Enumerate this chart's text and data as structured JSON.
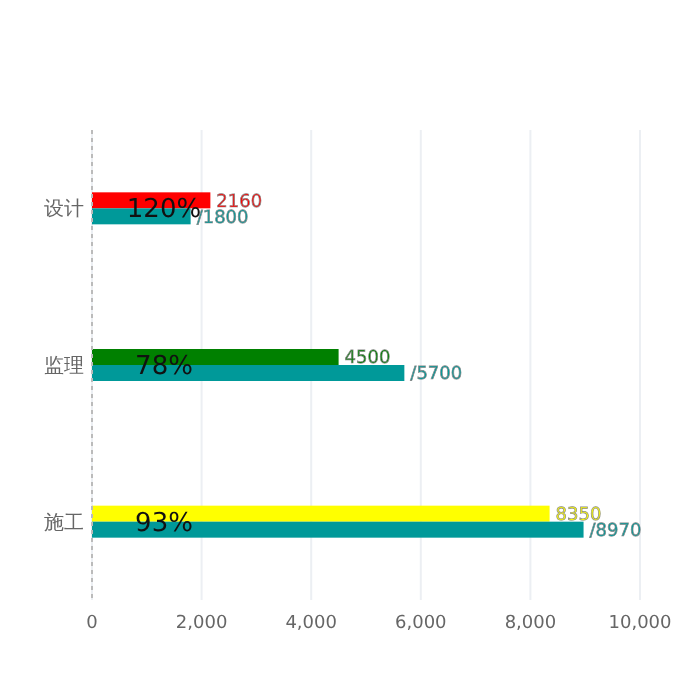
{
  "chart_data": {
    "type": "bar",
    "orientation": "horizontal",
    "categories": [
      "设计",
      "监理",
      "施工"
    ],
    "series": [
      {
        "colors": [
          "#ff0000",
          "#008000",
          "#ffff00"
        ],
        "values": [
          2160,
          4500,
          8350
        ],
        "value_labels": [
          "2160",
          "4500",
          "8350"
        ]
      },
      {
        "color": "#009999",
        "values": [
          1800,
          5700,
          8970
        ],
        "value_labels": [
          "/1800",
          "/5700",
          "/8970"
        ]
      }
    ],
    "xlim": [
      0,
      10000
    ],
    "xticks": [
      {
        "value": 0,
        "label": "0"
      },
      {
        "value": 2000,
        "label": "2,000"
      },
      {
        "value": 4000,
        "label": "4,000"
      },
      {
        "value": 6000,
        "label": "6,000"
      },
      {
        "value": 8000,
        "label": "8,000"
      },
      {
        "value": 10000,
        "label": "10,000"
      }
    ],
    "grid": "x",
    "annotations": [
      {
        "text": "120%",
        "y": "设计"
      },
      {
        "text": "78%",
        "y": "监理"
      },
      {
        "text": "93%",
        "y": "施工"
      }
    ]
  }
}
